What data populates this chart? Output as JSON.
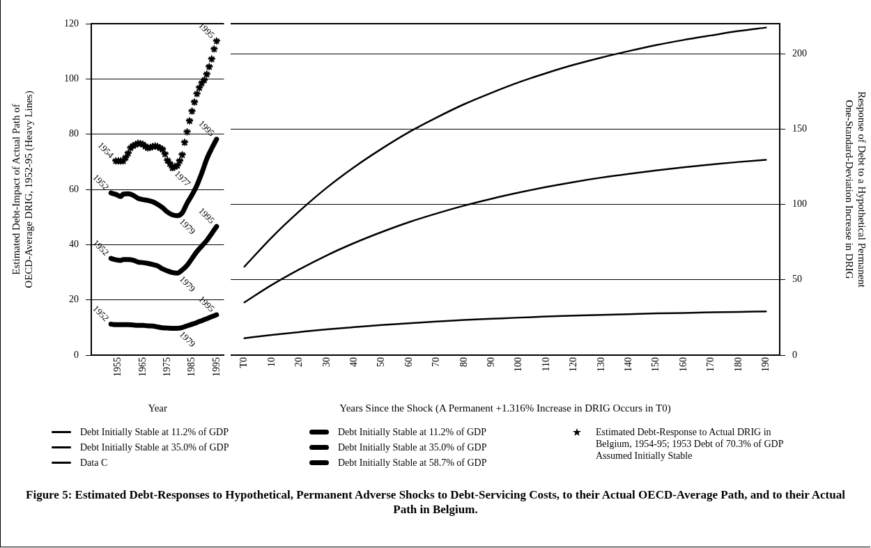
{
  "chart_data": [
    {
      "type": "line",
      "title": "Figure 5: Estimated Debt-Responses to Hypothetical, Permanent Adverse Shocks to Debt-Servicing Costs, to their Actual OECD-Average Path, and to their Actual Path in Belgium.",
      "xlabel": "Year",
      "ylabel": "Estimated Debt-Impact of Actual Path of OECD-Average DRIG, 1952-95 (Heavy Lines)",
      "xlim": [
        1944,
        1998
      ],
      "xticks": [
        1955,
        1965,
        1975,
        1985,
        1995
      ],
      "ylim": [
        0,
        120
      ],
      "yticks": [
        0,
        20,
        40,
        60,
        80,
        100,
        120
      ],
      "grid": "y",
      "legend": "bottom",
      "marker": "none",
      "series": [
        {
          "name": "Debt Initially Stable at 11.2% of GDP",
          "color": "#000000",
          "x": [
            1952,
            1954,
            1956,
            1957,
            1959,
            1961,
            1963,
            1965,
            1967,
            1969,
            1971,
            1973,
            1975,
            1977,
            1979,
            1981,
            1983,
            1985,
            1987,
            1989,
            1991,
            1993,
            1995
          ],
          "values": [
            11.2,
            11.0,
            11.0,
            11.0,
            11.0,
            10.9,
            10.8,
            10.8,
            10.6,
            10.5,
            10.2,
            9.9,
            9.8,
            9.7,
            9.7,
            10.0,
            10.6,
            11.2,
            11.8,
            12.5,
            13.2,
            13.9,
            14.6
          ]
        },
        {
          "name": "Debt Initially Stable at 35.0% of GDP",
          "color": "#000000",
          "x": [
            1952,
            1954,
            1956,
            1957,
            1959,
            1961,
            1963,
            1965,
            1967,
            1969,
            1971,
            1973,
            1975,
            1977,
            1979,
            1981,
            1983,
            1985,
            1987,
            1989,
            1991,
            1993,
            1995
          ],
          "values": [
            35.0,
            34.5,
            34.3,
            34.6,
            34.6,
            34.4,
            33.7,
            33.5,
            33.2,
            32.8,
            32.3,
            31.2,
            30.5,
            29.9,
            29.7,
            30.8,
            32.5,
            35.0,
            37.5,
            39.5,
            41.5,
            44.0,
            46.6
          ]
        },
        {
          "name": "Debt Initially Stable at 58.7% of GDP",
          "color": "#000000",
          "x": [
            1952,
            1954,
            1956,
            1957,
            1959,
            1961,
            1963,
            1965,
            1967,
            1969,
            1971,
            1973,
            1975,
            1977,
            1979,
            1981,
            1983,
            1985,
            1987,
            1989,
            1991,
            1993,
            1995
          ],
          "values": [
            58.7,
            58.2,
            57.4,
            58.3,
            58.4,
            57.9,
            56.8,
            56.3,
            56.0,
            55.5,
            54.6,
            53.4,
            51.8,
            50.8,
            50.5,
            51.5,
            55.0,
            58.0,
            61.5,
            66.0,
            71.0,
            74.8,
            78.2
          ]
        },
        {
          "name": "Estimated Debt-Response to Actual DRIG in Belgium, 1954-95; 1953 Debt of 70.3% of GDP Assumed Initially Stable",
          "type": "scatter",
          "marker": "star",
          "color": "#000000",
          "x": [
            1954,
            1955,
            1956,
            1957,
            1958,
            1959,
            1960,
            1961,
            1962,
            1963,
            1964,
            1965,
            1966,
            1967,
            1968,
            1969,
            1970,
            1971,
            1972,
            1973,
            1974,
            1975,
            1976,
            1977,
            1978,
            1979,
            1980,
            1981,
            1982,
            1983,
            1984,
            1985,
            1986,
            1987,
            1988,
            1989,
            1990,
            1991,
            1992,
            1993,
            1994,
            1995
          ],
          "values": [
            70.3,
            70.3,
            70.3,
            70.3,
            71.5,
            73.1,
            75.0,
            75.8,
            76.2,
            76.7,
            76.6,
            76.3,
            75.6,
            75.0,
            75.2,
            75.5,
            75.7,
            75.5,
            75.0,
            74.5,
            72.8,
            70.5,
            69.3,
            67.8,
            68.2,
            68.6,
            70.3,
            72.5,
            77.0,
            80.8,
            84.8,
            88.3,
            91.6,
            94.6,
            96.8,
            98.5,
            99.6,
            101.7,
            104.4,
            107.2,
            110.8,
            113.7
          ]
        }
      ],
      "annotations": [
        {
          "text": "1954",
          "x": 1954,
          "y": 70.3
        },
        {
          "text": "1977",
          "x": 1977,
          "y": 67.8
        },
        {
          "text": "1995",
          "x": 1995,
          "y": 113.7
        },
        {
          "text": "1952",
          "x": 1952,
          "y": 58.7
        },
        {
          "text": "1979",
          "x": 1979,
          "y": 50.5
        },
        {
          "text": "1995",
          "x": 1995,
          "y": 78.2
        },
        {
          "text": "1952",
          "x": 1952,
          "y": 35.0
        },
        {
          "text": "1979",
          "x": 1979,
          "y": 29.7
        },
        {
          "text": "1995",
          "x": 1995,
          "y": 46.6
        },
        {
          "text": "1952",
          "x": 1952,
          "y": 11.2
        },
        {
          "text": "1979",
          "x": 1979,
          "y": 9.7
        },
        {
          "text": "1995",
          "x": 1995,
          "y": 14.6
        }
      ]
    },
    {
      "type": "line",
      "xlabel": "Years Since the Shock (A Permanent +1.316% Increase in DRIG Occurs in T0)",
      "y2label": "Response of Debt to a Hypothetical Permanent One-Standard-Deviation Increase in DRIG",
      "xlim": [
        -5,
        195
      ],
      "xticks": [
        {
          "value": 0,
          "label": "T0"
        },
        10,
        20,
        30,
        40,
        50,
        60,
        70,
        80,
        90,
        100,
        110,
        120,
        130,
        140,
        150,
        160,
        170,
        180,
        190
      ],
      "y2lim": [
        0,
        220
      ],
      "y2ticks": [
        0,
        50,
        100,
        150,
        200
      ],
      "grid": "y",
      "legend": "bottom",
      "marker": "none",
      "series": [
        {
          "name": "Debt Initially Stable at 11.2% of GDP",
          "color": "#000000",
          "axis": "y2",
          "x": [
            0,
            10,
            20,
            30,
            40,
            50,
            60,
            70,
            80,
            90,
            100,
            110,
            120,
            130,
            140,
            150,
            160,
            170,
            180,
            190
          ],
          "values": [
            11.2,
            13.4,
            15.3,
            17.1,
            18.6,
            20.0,
            21.2,
            22.3,
            23.3,
            24.1,
            24.9,
            25.6,
            26.2,
            26.7,
            27.2,
            27.7,
            28.0,
            28.4,
            28.7,
            29.0
          ]
        },
        {
          "name": "Debt Initially Stable at 35.0% of GDP",
          "color": "#000000",
          "axis": "y2",
          "x": [
            0,
            10,
            20,
            30,
            40,
            50,
            60,
            70,
            80,
            90,
            100,
            110,
            120,
            130,
            140,
            150,
            160,
            170,
            180,
            190
          ],
          "values": [
            35.0,
            46.6,
            56.9,
            66.2,
            74.4,
            81.7,
            88.3,
            94.0,
            99.2,
            103.8,
            107.9,
            111.6,
            114.9,
            117.8,
            120.3,
            122.6,
            124.7,
            126.5,
            128.2,
            129.6
          ]
        },
        {
          "name": "Data C",
          "color": "#000000",
          "axis": "y2",
          "x": [
            0,
            10,
            20,
            30,
            40,
            50,
            60,
            70,
            80,
            90,
            100,
            110,
            120,
            130,
            140,
            150,
            160,
            170,
            180,
            190
          ],
          "values": [
            58.7,
            78.2,
            95.5,
            111.1,
            124.8,
            137.0,
            148.1,
            157.7,
            166.5,
            174.1,
            181.1,
            187.2,
            192.7,
            197.5,
            201.8,
            205.8,
            209.2,
            212.2,
            215.1,
            217.4
          ]
        }
      ]
    }
  ]
}
